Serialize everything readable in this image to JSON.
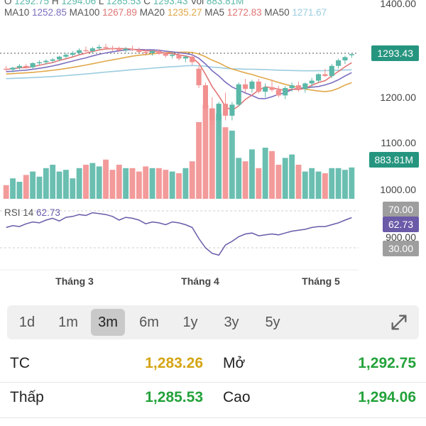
{
  "chart_data": {
    "type": "candlestick",
    "ohlc_legend": {
      "o": "1292.75",
      "h": "1294.06",
      "l": "1285.53",
      "c": "1293.43",
      "vol": "883.81M"
    },
    "ma_legend": [
      {
        "label": "MA10",
        "value": "1252.85",
        "color": "#7b6fc0"
      },
      {
        "label": "MA100",
        "value": "1267.89",
        "color": "#e07575"
      },
      {
        "label": "MA20",
        "value": "1235.27",
        "color": "#e0a84a"
      },
      {
        "label": "MA5",
        "value": "1272.83",
        "color": "#e07575"
      },
      {
        "label": "MA50",
        "value": "1271.67",
        "color": "#9bcde0"
      }
    ],
    "price_axis": {
      "ticks": [
        "1400.00",
        "1200.00",
        "1100.00",
        "1000.00"
      ]
    },
    "last_price": "1293.43",
    "volume_tag": "883.81M",
    "rsi": {
      "title": "RSI 14",
      "value": "62.73",
      "upper": "70.00",
      "lower": "30.00",
      "extra_tick": "900.00"
    },
    "months": [
      "Tháng 3",
      "Tháng 4",
      "Tháng 5"
    ],
    "candles": [
      [
        1262,
        1268,
        1256,
        1260
      ],
      [
        1260,
        1266,
        1254,
        1264
      ],
      [
        1264,
        1272,
        1260,
        1268
      ],
      [
        1268,
        1272,
        1262,
        1265
      ],
      [
        1265,
        1276,
        1262,
        1274
      ],
      [
        1274,
        1280,
        1270,
        1276
      ],
      [
        1276,
        1282,
        1271,
        1279
      ],
      [
        1279,
        1285,
        1275,
        1282
      ],
      [
        1282,
        1290,
        1278,
        1288
      ],
      [
        1288,
        1296,
        1284,
        1292
      ],
      [
        1292,
        1300,
        1288,
        1296
      ],
      [
        1296,
        1306,
        1292,
        1302
      ],
      [
        1302,
        1310,
        1298,
        1300
      ],
      [
        1300,
        1309,
        1295,
        1306
      ],
      [
        1306,
        1314,
        1302,
        1309
      ],
      [
        1309,
        1316,
        1304,
        1307
      ],
      [
        1307,
        1312,
        1300,
        1304
      ],
      [
        1304,
        1310,
        1298,
        1302
      ],
      [
        1302,
        1309,
        1297,
        1305
      ],
      [
        1305,
        1312,
        1300,
        1303
      ],
      [
        1303,
        1308,
        1296,
        1298
      ],
      [
        1298,
        1304,
        1290,
        1296
      ],
      [
        1296,
        1302,
        1290,
        1300
      ],
      [
        1300,
        1304,
        1292,
        1294
      ],
      [
        1294,
        1298,
        1286,
        1290
      ],
      [
        1290,
        1296,
        1284,
        1292
      ],
      [
        1292,
        1296,
        1280,
        1284
      ],
      [
        1284,
        1290,
        1276,
        1288
      ],
      [
        1288,
        1292,
        1270,
        1276
      ],
      [
        1262,
        1268,
        1220,
        1226
      ],
      [
        1226,
        1232,
        1170,
        1176
      ],
      [
        1176,
        1200,
        1140,
        1150
      ],
      [
        1150,
        1190,
        1118,
        1186
      ],
      [
        1186,
        1210,
        1150,
        1160
      ],
      [
        1160,
        1190,
        1150,
        1184
      ],
      [
        1184,
        1232,
        1180,
        1228
      ],
      [
        1228,
        1240,
        1210,
        1218
      ],
      [
        1218,
        1238,
        1210,
        1234
      ],
      [
        1234,
        1240,
        1208,
        1212
      ],
      [
        1212,
        1230,
        1200,
        1222
      ],
      [
        1222,
        1238,
        1212,
        1216
      ],
      [
        1216,
        1225,
        1200,
        1204
      ],
      [
        1204,
        1224,
        1196,
        1220
      ],
      [
        1220,
        1232,
        1212,
        1226
      ],
      [
        1226,
        1234,
        1212,
        1218
      ],
      [
        1218,
        1232,
        1210,
        1230
      ],
      [
        1230,
        1242,
        1222,
        1236
      ],
      [
        1236,
        1252,
        1232,
        1250
      ],
      [
        1250,
        1262,
        1244,
        1246
      ],
      [
        1246,
        1272,
        1242,
        1268
      ],
      [
        1268,
        1284,
        1262,
        1280
      ],
      [
        1280,
        1290,
        1272,
        1287
      ],
      [
        1292.75,
        1294.06,
        1285.53,
        1293.43
      ]
    ],
    "volumes": [
      780,
      820,
      800,
      840,
      860,
      830,
      880,
      900,
      860,
      870,
      820,
      880,
      900,
      910,
      890,
      930,
      870,
      900,
      880,
      880,
      860,
      890,
      880,
      880,
      870,
      860,
      850,
      880,
      920,
      1150,
      1250,
      1230,
      1200,
      1120,
      1100,
      940,
      920,
      990,
      880,
      1000,
      980,
      900,
      940,
      960,
      900,
      860,
      880,
      860,
      850,
      880,
      880,
      870,
      883.81
    ],
    "rsi_values": [
      52,
      54,
      53,
      56,
      58,
      57,
      60,
      62,
      59,
      63,
      64,
      66,
      65,
      68,
      67,
      66,
      64,
      60,
      63,
      62,
      60,
      56,
      58,
      57,
      55,
      58,
      57,
      55,
      52,
      40,
      30,
      24,
      22,
      33,
      37,
      42,
      45,
      46,
      43,
      44,
      45,
      44,
      46,
      48,
      49,
      50,
      52,
      53,
      53,
      55,
      57,
      60,
      62.73
    ]
  },
  "range_tabs": [
    "1d",
    "1m",
    "3m",
    "6m",
    "1y",
    "3y",
    "5y"
  ],
  "active_tab": "3m",
  "stats": [
    {
      "left_label": "TC",
      "left_value": "1,283.26",
      "left_color": "#d4a514",
      "right_label": "Mở",
      "right_value": "1,292.75",
      "right_color": "#23a23a"
    },
    {
      "left_label": "Thấp",
      "left_value": "1,285.53",
      "left_color": "#23a23a",
      "right_label": "Cao",
      "right_value": "1,294.06",
      "right_color": "#23a23a"
    }
  ],
  "colors": {
    "up": "#5ab8a8",
    "down": "#f28f8f",
    "rsi_line": "#6a5aa8",
    "tag_price": "#26957f",
    "tag_gray": "#9e9e9e",
    "tag_rsi": "#6a5aa8"
  }
}
